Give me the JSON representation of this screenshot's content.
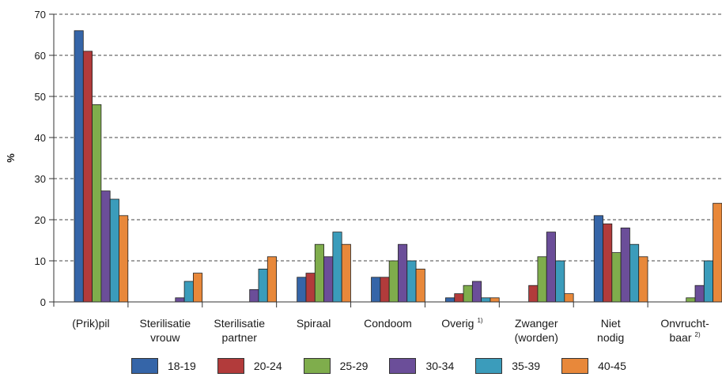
{
  "chart_data": {
    "type": "bar",
    "title": "",
    "xlabel": "",
    "ylabel": "%",
    "ylim": [
      0,
      70
    ],
    "yticks": [
      0,
      10,
      20,
      30,
      40,
      50,
      60,
      70
    ],
    "grid": "dashed horizontal",
    "legend_position": "bottom",
    "categories": [
      {
        "lines": [
          "(Prik)pil"
        ],
        "note": ""
      },
      {
        "lines": [
          "Sterilisatie",
          "vrouw"
        ],
        "note": ""
      },
      {
        "lines": [
          "Sterilisatie",
          "partner"
        ],
        "note": ""
      },
      {
        "lines": [
          "Spiraal"
        ],
        "note": ""
      },
      {
        "lines": [
          "Condoom"
        ],
        "note": ""
      },
      {
        "lines": [
          "Overig"
        ],
        "note": "1)"
      },
      {
        "lines": [
          "Zwanger",
          "(worden)"
        ],
        "note": ""
      },
      {
        "lines": [
          "Niet",
          "nodig"
        ],
        "note": ""
      },
      {
        "lines": [
          "Onvrucht-",
          "baar"
        ],
        "note": "2)"
      }
    ],
    "series": [
      {
        "name": "18-19",
        "color": "#3565a8",
        "values": [
          66,
          0,
          0,
          6,
          6,
          1,
          0,
          21,
          0
        ]
      },
      {
        "name": "20-24",
        "color": "#b23b3b",
        "values": [
          61,
          0,
          0,
          7,
          6,
          2,
          4,
          19,
          0
        ]
      },
      {
        "name": "25-29",
        "color": "#7fad4c",
        "values": [
          48,
          0,
          0,
          14,
          10,
          4,
          11,
          12,
          1
        ]
      },
      {
        "name": "30-34",
        "color": "#6b4e99",
        "values": [
          27,
          1,
          3,
          11,
          14,
          5,
          17,
          18,
          4
        ]
      },
      {
        "name": "35-39",
        "color": "#3b9cbb",
        "values": [
          25,
          5,
          8,
          17,
          10,
          1,
          10,
          14,
          10
        ]
      },
      {
        "name": "40-45",
        "color": "#e8883a",
        "values": [
          21,
          7,
          11,
          14,
          8,
          1,
          2,
          11,
          24
        ]
      }
    ]
  }
}
